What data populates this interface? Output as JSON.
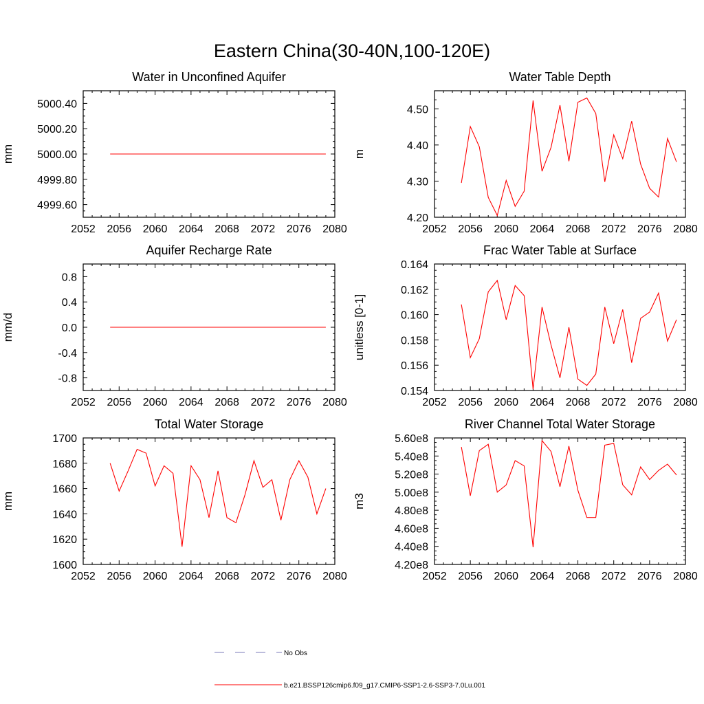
{
  "figure": {
    "title": "Eastern China(30-40N,100-120E)"
  },
  "chart_data": [
    {
      "type": "line",
      "title": "Water in Unconfined Aquifer",
      "ylabel": "mm",
      "xlim": [
        2052,
        2080
      ],
      "ylim": [
        4999.5,
        5000.5
      ],
      "xticks": [
        2052,
        2056,
        2060,
        2064,
        2068,
        2072,
        2076,
        2080
      ],
      "yticks": [
        4999.6,
        4999.8,
        5000.0,
        5000.2,
        5000.4
      ],
      "ytick_labels": [
        "4999.60",
        "4999.80",
        "5000.00",
        "5000.20",
        "5000.40"
      ],
      "color": "#ff0000",
      "x": [
        2055,
        2056,
        2057,
        2058,
        2059,
        2060,
        2061,
        2062,
        2063,
        2064,
        2065,
        2066,
        2067,
        2068,
        2069,
        2070,
        2071,
        2072,
        2073,
        2074,
        2075,
        2076,
        2077,
        2078,
        2079
      ],
      "values": [
        5000,
        5000,
        5000,
        5000,
        5000,
        5000,
        5000,
        5000,
        5000,
        5000,
        5000,
        5000,
        5000,
        5000,
        5000,
        5000,
        5000,
        5000,
        5000,
        5000,
        5000,
        5000,
        5000,
        5000,
        5000
      ]
    },
    {
      "type": "line",
      "title": "Water Table Depth",
      "ylabel": "m",
      "xlim": [
        2052,
        2080
      ],
      "ylim": [
        4.2,
        4.55
      ],
      "xticks": [
        2052,
        2056,
        2060,
        2064,
        2068,
        2072,
        2076,
        2080
      ],
      "yticks": [
        4.2,
        4.3,
        4.4,
        4.5
      ],
      "ytick_labels": [
        "4.20",
        "4.30",
        "4.40",
        "4.50"
      ],
      "color": "#ff0000",
      "x": [
        2055,
        2056,
        2057,
        2058,
        2059,
        2060,
        2061,
        2062,
        2063,
        2064,
        2065,
        2066,
        2067,
        2068,
        2069,
        2070,
        2071,
        2072,
        2073,
        2074,
        2075,
        2076,
        2077,
        2078,
        2079
      ],
      "values": [
        4.295,
        4.451,
        4.395,
        4.255,
        4.205,
        4.302,
        4.23,
        4.272,
        4.523,
        4.327,
        4.393,
        4.51,
        4.355,
        4.518,
        4.53,
        4.487,
        4.298,
        4.428,
        4.362,
        4.466,
        4.347,
        4.28,
        4.256,
        4.418,
        4.353
      ]
    },
    {
      "type": "line",
      "title": "Aquifer Recharge Rate",
      "ylabel": "mm/d",
      "xlim": [
        2052,
        2080
      ],
      "ylim": [
        -1.0,
        1.0
      ],
      "xticks": [
        2052,
        2056,
        2060,
        2064,
        2068,
        2072,
        2076,
        2080
      ],
      "yticks": [
        -0.8,
        -0.4,
        0.0,
        0.4,
        0.8
      ],
      "ytick_labels": [
        "-0.8",
        "-0.4",
        "0.0",
        "0.4",
        "0.8"
      ],
      "color": "#ff0000",
      "x": [
        2055,
        2056,
        2057,
        2058,
        2059,
        2060,
        2061,
        2062,
        2063,
        2064,
        2065,
        2066,
        2067,
        2068,
        2069,
        2070,
        2071,
        2072,
        2073,
        2074,
        2075,
        2076,
        2077,
        2078,
        2079
      ],
      "values": [
        0,
        0,
        0,
        0,
        0,
        0,
        0,
        0,
        0,
        0,
        0,
        0,
        0,
        0,
        0,
        0,
        0,
        0,
        0,
        0,
        0,
        0,
        0,
        0,
        0
      ]
    },
    {
      "type": "line",
      "title": "Frac Water Table at Surface",
      "ylabel": "unitless [0-1]",
      "xlim": [
        2052,
        2080
      ],
      "ylim": [
        0.154,
        0.164
      ],
      "xticks": [
        2052,
        2056,
        2060,
        2064,
        2068,
        2072,
        2076,
        2080
      ],
      "yticks": [
        0.154,
        0.156,
        0.158,
        0.16,
        0.162,
        0.164
      ],
      "ytick_labels": [
        "0.154",
        "0.156",
        "0.158",
        "0.160",
        "0.162",
        "0.164"
      ],
      "color": "#ff0000",
      "x": [
        2055,
        2056,
        2057,
        2058,
        2059,
        2060,
        2061,
        2062,
        2063,
        2064,
        2065,
        2066,
        2067,
        2068,
        2069,
        2070,
        2071,
        2072,
        2073,
        2074,
        2075,
        2076,
        2077,
        2078,
        2079
      ],
      "values": [
        0.1608,
        0.1566,
        0.1581,
        0.1618,
        0.1627,
        0.1596,
        0.1623,
        0.1615,
        0.1541,
        0.1606,
        0.1576,
        0.155,
        0.159,
        0.1549,
        0.1544,
        0.1553,
        0.1606,
        0.1577,
        0.1604,
        0.1562,
        0.1597,
        0.1602,
        0.1617,
        0.1579,
        0.1596
      ]
    },
    {
      "type": "line",
      "title": "Total Water Storage",
      "ylabel": "mm",
      "xlim": [
        2052,
        2080
      ],
      "ylim": [
        1600,
        1700
      ],
      "xticks": [
        2052,
        2056,
        2060,
        2064,
        2068,
        2072,
        2076,
        2080
      ],
      "yticks": [
        1600,
        1620,
        1640,
        1660,
        1680,
        1700
      ],
      "ytick_labels": [
        "1600",
        "1620",
        "1640",
        "1660",
        "1680",
        "1700"
      ],
      "color": "#ff0000",
      "x": [
        2055,
        2056,
        2057,
        2058,
        2059,
        2060,
        2061,
        2062,
        2063,
        2064,
        2065,
        2066,
        2067,
        2068,
        2069,
        2070,
        2071,
        2072,
        2073,
        2074,
        2075,
        2076,
        2077,
        2078,
        2079
      ],
      "values": [
        1680,
        1658,
        1674,
        1691,
        1688,
        1662,
        1678,
        1672,
        1614,
        1678,
        1667,
        1637,
        1674,
        1637,
        1633,
        1655,
        1682,
        1661,
        1667,
        1635,
        1667,
        1682,
        1669,
        1640,
        1660
      ]
    },
    {
      "type": "line",
      "title": "River Channel Total Water Storage",
      "ylabel": "m3",
      "xlim": [
        2052,
        2080
      ],
      "ylim": [
        420000000,
        560000000
      ],
      "xticks": [
        2052,
        2056,
        2060,
        2064,
        2068,
        2072,
        2076,
        2080
      ],
      "yticks": [
        420000000,
        440000000,
        460000000,
        480000000,
        500000000,
        520000000,
        540000000,
        560000000
      ],
      "ytick_labels": [
        "4.20e8",
        "4.40e8",
        "4.60e8",
        "4.80e8",
        "5.00e8",
        "5.20e8",
        "5.40e8",
        "5.60e8"
      ],
      "color": "#ff0000",
      "x": [
        2055,
        2056,
        2057,
        2058,
        2059,
        2060,
        2061,
        2062,
        2063,
        2064,
        2065,
        2066,
        2067,
        2068,
        2069,
        2070,
        2071,
        2072,
        2073,
        2074,
        2075,
        2076,
        2077,
        2078,
        2079
      ],
      "values": [
        550000000,
        496000000,
        546000000,
        553000000,
        500000000,
        508000000,
        535000000,
        529000000,
        439000000,
        557000000,
        545000000,
        506000000,
        551000000,
        502000000,
        472000000,
        472000000,
        552000000,
        554000000,
        508000000,
        497000000,
        528000000,
        514000000,
        524000000,
        531000000,
        519000000
      ]
    }
  ],
  "legend": {
    "items": [
      {
        "label": "No Obs",
        "color": "#7a7ab8",
        "dash": true
      },
      {
        "label": "b.e21.BSSP126cmip6.f09_g17.CMIP6-SSP1-2.6-SSP3-7.0Lu.001",
        "color": "#ff0000",
        "dash": false
      }
    ]
  }
}
